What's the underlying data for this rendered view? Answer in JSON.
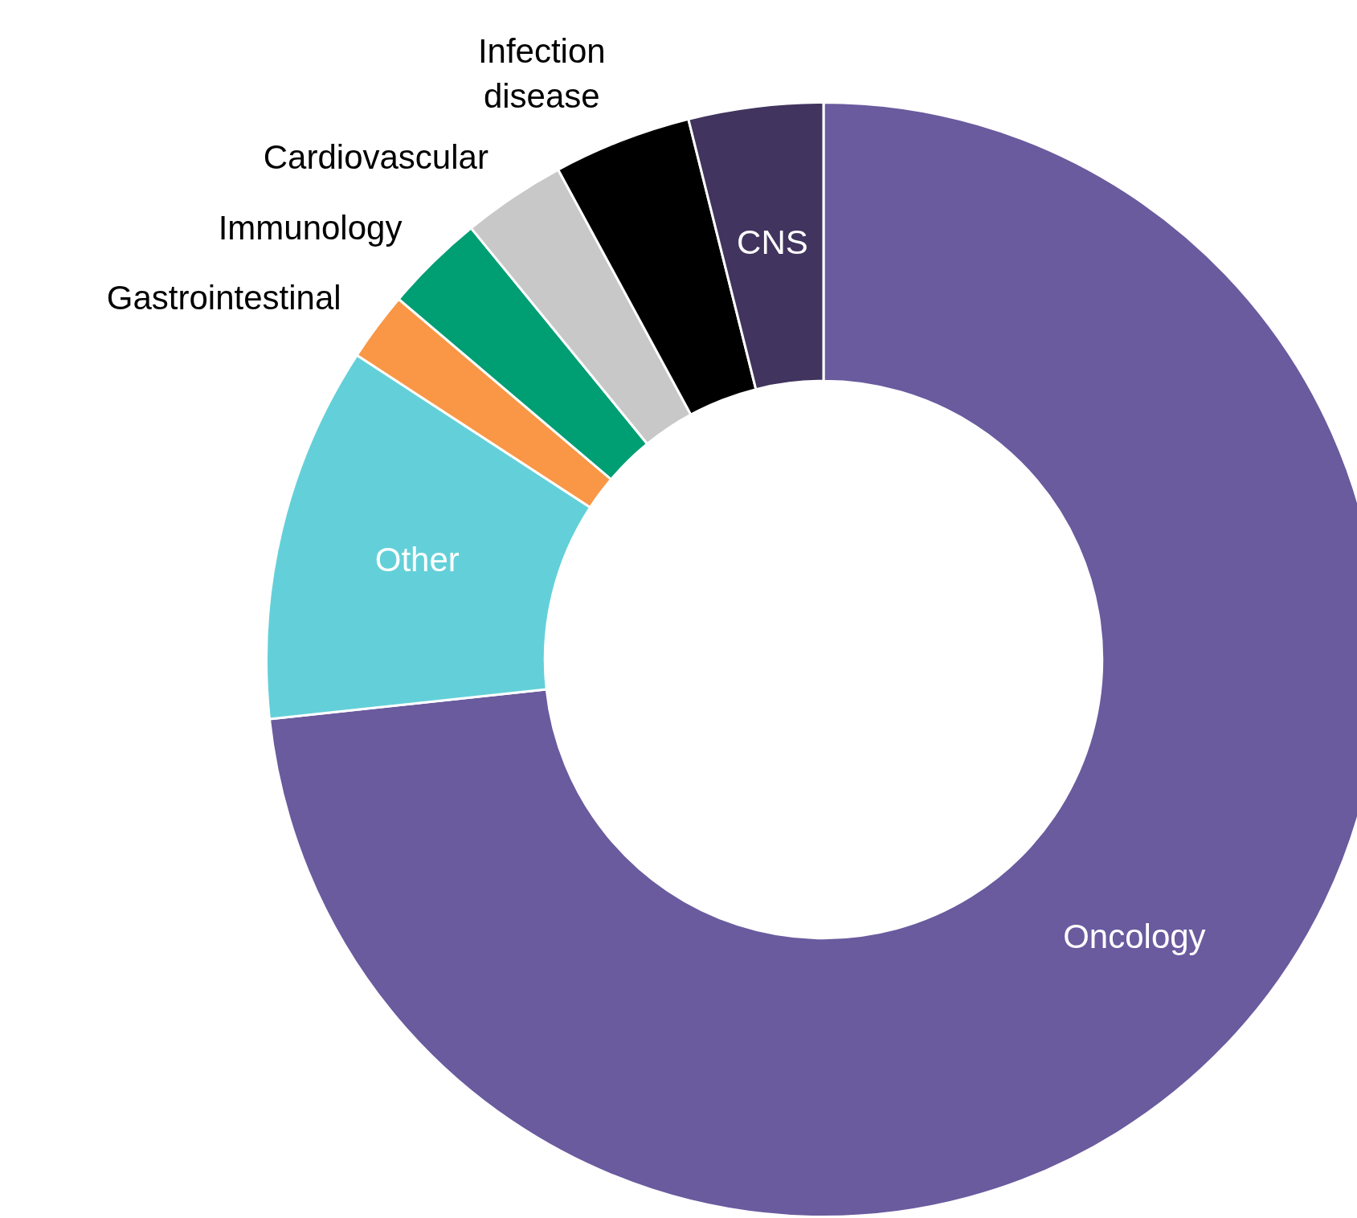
{
  "chart_data": {
    "type": "donut",
    "categories": [
      "Oncology",
      "Other",
      "Gastrointestinal",
      "Immunology",
      "Cardiovascular",
      "Infection disease",
      "CNS"
    ],
    "values": [
      73.3,
      10.9,
      2.0,
      2.9,
      3.0,
      4.0,
      3.9
    ],
    "colors": [
      "#6a5a9e",
      "#63d0d9",
      "#f99746",
      "#009e73",
      "#c8c8c8",
      "#000000",
      "#41345f"
    ],
    "legend": false
  }
}
